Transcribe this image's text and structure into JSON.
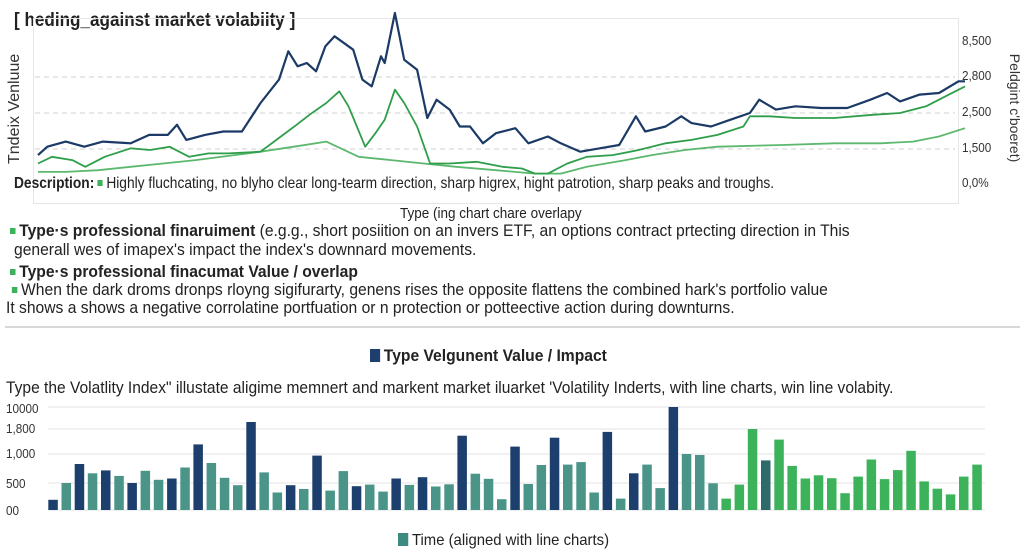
{
  "title": "[ heding_against market volabiity ]",
  "colors": {
    "navy": "#1b3a66",
    "hedge_green": "#2f9e4a",
    "light_green": "#5cb86e",
    "bar_dark": "#1c3f6e",
    "bar_teal": "#4a9488",
    "bar_mid": "#2f6a6a",
    "bar_green": "#3cb35a"
  },
  "description": {
    "label": "Description:",
    "text": "Highly fluchcating, no blyho clear long-tearm direction, sharp higrex, hight patrotion, sharp peaks and troughs."
  },
  "overlay_caption": "Type (ing chart chare overlapy",
  "blocks": [
    {
      "heading": "Type·s professional finaruiment",
      "text": " (e.g.g., short posiition on an invers ETF, an options contract prtecting direction in This",
      "text2": "generall wes of imapex's impact the index's downnard movements."
    },
    {
      "heading": "Type·s professional finacumat Value / overlap",
      "text": "When the dark droms dronps rloyng sigifurarty, genens rises the opposite flattens the combined hark's portfolio value",
      "text2": "It shows a shows a negative corrolatine portfuation or n protection or potteective action during downturns."
    }
  ],
  "chart_data": [
    {
      "type": "line",
      "title": "[ heding_against market volabiity ]",
      "ylabel": "Tndeix Venluue",
      "ylabel_right": "Peldgint c'boeret)",
      "y_ticks_right": [
        {
          "label": "8,500",
          "value": 8500
        },
        {
          "label": "2,800",
          "value": 2800
        },
        {
          "label": "2,500",
          "value": 2500
        },
        {
          "label": "1,500",
          "value": 1500
        },
        {
          "label": "0,0%",
          "value": 0
        }
      ],
      "grid": "dashed horizontal",
      "xlim": [
        0,
        100
      ],
      "series": [
        {
          "color": "#1b3a66",
          "points": [
            [
              0,
              1233
            ],
            [
              1,
              1565
            ],
            [
              3,
              1706
            ],
            [
              5,
              1565
            ],
            [
              7,
              1706
            ],
            [
              10,
              1659
            ],
            [
              12,
              1893
            ],
            [
              14,
              1893
            ],
            [
              15,
              2173
            ],
            [
              16,
              1752
            ],
            [
              18,
              1893
            ],
            [
              20,
              1986
            ],
            [
              22,
              1986
            ],
            [
              24,
              2583
            ],
            [
              26,
              2778
            ],
            [
              27,
              7103
            ],
            [
              28,
              4588
            ],
            [
              29,
              5147
            ],
            [
              30,
              3750
            ],
            [
              31,
              7941
            ],
            [
              32,
              9618
            ],
            [
              34,
              7382
            ],
            [
              35,
              2778
            ],
            [
              36,
              2722
            ],
            [
              37,
              6265
            ],
            [
              37.4,
              5147
            ],
            [
              38.5,
              13529
            ],
            [
              39.5,
              5706
            ],
            [
              40.9,
              4029
            ],
            [
              42,
              2360
            ],
            [
              43,
              2611
            ],
            [
              44.4,
              2528
            ],
            [
              45.5,
              2126
            ],
            [
              46.6,
              2126
            ],
            [
              48,
              1659
            ],
            [
              49.4,
              1939
            ],
            [
              51.5,
              2079
            ],
            [
              52.9,
              1659
            ],
            [
              55,
              1846
            ],
            [
              56.4,
              1659
            ],
            [
              58.5,
              1381
            ],
            [
              60.6,
              1519
            ],
            [
              62.7,
              1612
            ],
            [
              64.5,
              2407
            ],
            [
              65.5,
              1986
            ],
            [
              67.7,
              2126
            ],
            [
              69.4,
              2407
            ],
            [
              70.5,
              2220
            ],
            [
              72.6,
              2126
            ],
            [
              74.7,
              2313
            ],
            [
              76.8,
              2500
            ],
            [
              77.8,
              2611
            ],
            [
              79.6,
              2528
            ],
            [
              81.7,
              2556
            ],
            [
              84.5,
              2542
            ],
            [
              87.3,
              2542
            ],
            [
              89.8,
              2611
            ],
            [
              91.6,
              2667
            ],
            [
              93,
              2597
            ],
            [
              95.1,
              2653
            ],
            [
              97.2,
              2667
            ],
            [
              99.3,
              2764
            ],
            [
              100,
              2764
            ]
          ]
        },
        {
          "color": "#2f9e4a",
          "points": [
            [
              0,
              861
            ],
            [
              1.5,
              1158
            ],
            [
              3.7,
              1010
            ],
            [
              5.1,
              713
            ],
            [
              7.2,
              1158
            ],
            [
              10,
              1519
            ],
            [
              12.1,
              1455
            ],
            [
              14.2,
              1565
            ],
            [
              16.3,
              1158
            ],
            [
              18.4,
              1307
            ],
            [
              20.5,
              1307
            ],
            [
              24,
              1381
            ],
            [
              26.2,
              1846
            ],
            [
              27.9,
              2173
            ],
            [
              29.3,
              2453
            ],
            [
              31.1,
              2583
            ],
            [
              32.5,
              2681
            ],
            [
              33.5,
              2556
            ],
            [
              35.3,
              1565
            ],
            [
              36.4,
              1939
            ],
            [
              37.4,
              2313
            ],
            [
              38.5,
              2694
            ],
            [
              39.5,
              2583
            ],
            [
              40.9,
              2126
            ],
            [
              42.3,
              861
            ],
            [
              44.4,
              861
            ],
            [
              47.3,
              936
            ],
            [
              50.1,
              713
            ],
            [
              52.2,
              639
            ],
            [
              53.6,
              416
            ],
            [
              55,
              416
            ],
            [
              57.1,
              861
            ],
            [
              59.2,
              1158
            ],
            [
              62,
              1233
            ],
            [
              64.8,
              1455
            ],
            [
              67.7,
              1659
            ],
            [
              70.5,
              1752
            ],
            [
              73.3,
              1893
            ],
            [
              76.1,
              2126
            ],
            [
              76.8,
              2407
            ],
            [
              78.9,
              2407
            ],
            [
              81.7,
              2360
            ],
            [
              85.9,
              2360
            ],
            [
              90.2,
              2453
            ],
            [
              93,
              2500
            ],
            [
              95.8,
              2556
            ],
            [
              97.9,
              2639
            ],
            [
              100,
              2722
            ]
          ]
        },
        {
          "color": "#5cb86e",
          "points": [
            [
              0,
              490
            ],
            [
              3,
              490
            ],
            [
              6.5,
              564
            ],
            [
              10,
              713
            ],
            [
              13.5,
              861
            ],
            [
              17,
              1010
            ],
            [
              24,
              1381
            ],
            [
              27.6,
              1565
            ],
            [
              31.1,
              1706
            ],
            [
              34.6,
              1158
            ],
            [
              38.1,
              1010
            ],
            [
              41.6,
              861
            ],
            [
              45.1,
              713
            ],
            [
              49.4,
              564
            ],
            [
              53.6,
              416
            ],
            [
              56.4,
              416
            ],
            [
              59.2,
              713
            ],
            [
              63.4,
              1010
            ],
            [
              66.2,
              1233
            ],
            [
              69.8,
              1455
            ],
            [
              73.3,
              1565
            ],
            [
              80.3,
              1612
            ],
            [
              85.9,
              1659
            ],
            [
              90.9,
              1659
            ],
            [
              94.4,
              1706
            ],
            [
              97.2,
              1846
            ],
            [
              100,
              2079
            ]
          ]
        }
      ]
    },
    {
      "type": "bar",
      "title": "Type Velgunent  Value / Impact",
      "subtitle": "Type the Volatlity Index\" illustate aligime memnert and markent market iluarket 'Volatility Inderts, with line charts, win line volabity.",
      "xlabel": "Time (aligned with line charts)",
      "y_ticks": [
        {
          "label": "10000",
          "value": 10000
        },
        {
          "label": "1,800",
          "value": 1800
        },
        {
          "label": "1,000",
          "value": 1000
        },
        {
          "label": "500",
          "value": 500
        },
        {
          "label": "00",
          "value": 0
        }
      ],
      "grid": true,
      "values": [
        188,
        500,
        828,
        667,
        717,
        622,
        500,
        711,
        556,
        578,
        767,
        1308,
        844,
        589,
        459,
        4400,
        683,
        324,
        459,
        388,
        972,
        359,
        706,
        441,
        471,
        341,
        578,
        465,
        600,
        435,
        476,
        1585,
        661,
        572,
        200,
        1236,
        482,
        811,
        1523,
        817,
        861,
        324,
        1708,
        212,
        667,
        817,
        406,
        10000,
        1000,
        983,
        494,
        212,
        471,
        1800,
        889,
        1462,
        794,
        578,
        633,
        583,
        312,
        611,
        906,
        567,
        722,
        1103,
        528,
        394,
        288,
        611,
        817
      ],
      "bar_colors": [
        "dark",
        "teal",
        "dark",
        "teal",
        "dark",
        "teal",
        "dark",
        "teal",
        "teal",
        "dark",
        "teal",
        "dark",
        "teal",
        "teal",
        "teal",
        "dark",
        "teal",
        "teal",
        "dark",
        "teal",
        "dark",
        "teal",
        "teal",
        "dark",
        "teal",
        "teal",
        "dark",
        "teal",
        "dark",
        "teal",
        "teal",
        "dark",
        "teal",
        "teal",
        "teal",
        "dark",
        "teal",
        "teal",
        "dark",
        "teal",
        "teal",
        "teal",
        "dark",
        "teal",
        "dark",
        "teal",
        "teal",
        "dark",
        "teal",
        "teal",
        "teal",
        "green",
        "green",
        "green",
        "mid",
        "green",
        "green",
        "green",
        "green",
        "green",
        "green",
        "green",
        "green",
        "green",
        "green",
        "green",
        "green",
        "green",
        "green",
        "green",
        "green"
      ]
    }
  ]
}
